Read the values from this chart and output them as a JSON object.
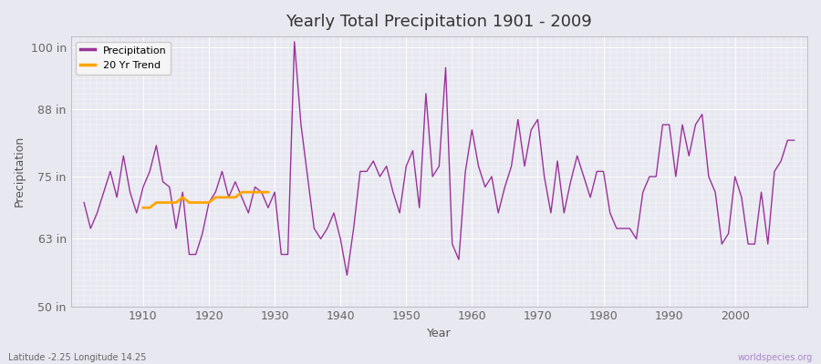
{
  "title": "Yearly Total Precipitation 1901 - 2009",
  "xlabel": "Year",
  "ylabel": "Precipitation",
  "bottom_left_label": "Latitude -2.25 Longitude 14.25",
  "bottom_right_label": "worldspecies.org",
  "ylim": [
    50,
    102
  ],
  "yticks": [
    50,
    63,
    75,
    88,
    100
  ],
  "ytick_labels": [
    "50 in",
    "63 in",
    "75 in",
    "88 in",
    "100 in"
  ],
  "xlim": [
    1899,
    2011
  ],
  "xticks": [
    1910,
    1920,
    1930,
    1940,
    1950,
    1960,
    1970,
    1980,
    1990,
    2000
  ],
  "precip_color": "#993399",
  "trend_color": "#FFA500",
  "bg_color": "#e8e8f0",
  "plot_bg_color": "#e8e8f0",
  "grid_color": "#ffffff",
  "legend_bg": "#f5f5f5",
  "years": [
    1901,
    1902,
    1903,
    1904,
    1905,
    1906,
    1907,
    1908,
    1909,
    1910,
    1911,
    1912,
    1913,
    1914,
    1915,
    1916,
    1917,
    1918,
    1919,
    1920,
    1921,
    1922,
    1923,
    1924,
    1925,
    1926,
    1927,
    1928,
    1929,
    1930,
    1931,
    1932,
    1933,
    1934,
    1935,
    1936,
    1937,
    1938,
    1939,
    1940,
    1941,
    1942,
    1943,
    1944,
    1945,
    1946,
    1947,
    1948,
    1949,
    1950,
    1951,
    1952,
    1953,
    1954,
    1955,
    1956,
    1957,
    1958,
    1959,
    1960,
    1961,
    1962,
    1963,
    1964,
    1965,
    1966,
    1967,
    1968,
    1969,
    1970,
    1971,
    1972,
    1973,
    1974,
    1975,
    1976,
    1977,
    1978,
    1979,
    1980,
    1981,
    1982,
    1983,
    1984,
    1985,
    1986,
    1987,
    1988,
    1989,
    1990,
    1991,
    1992,
    1993,
    1994,
    1995,
    1996,
    1997,
    1998,
    1999,
    2000,
    2001,
    2002,
    2003,
    2004,
    2005,
    2006,
    2007,
    2008,
    2009
  ],
  "precip": [
    70,
    65,
    68,
    72,
    76,
    71,
    79,
    72,
    68,
    73,
    76,
    81,
    74,
    73,
    65,
    72,
    60,
    60,
    64,
    70,
    72,
    76,
    71,
    74,
    71,
    68,
    73,
    72,
    69,
    72,
    60,
    60,
    101,
    85,
    75,
    65,
    63,
    65,
    68,
    63,
    56,
    65,
    76,
    76,
    78,
    75,
    77,
    72,
    68,
    77,
    80,
    69,
    91,
    75,
    77,
    96,
    62,
    59,
    76,
    84,
    77,
    73,
    75,
    68,
    73,
    77,
    86,
    77,
    84,
    86,
    75,
    68,
    78,
    68,
    74,
    79,
    75,
    71,
    76,
    76,
    68,
    65,
    65,
    65,
    63,
    72,
    75,
    75,
    85,
    85,
    75,
    85,
    79,
    85,
    87,
    75,
    72,
    62,
    64,
    75,
    71,
    62,
    62,
    72,
    62,
    76,
    78,
    82,
    82
  ],
  "trend_years": [
    1910,
    1911,
    1912,
    1913,
    1914,
    1915,
    1916,
    1917,
    1918,
    1919,
    1920,
    1921,
    1922,
    1923,
    1924,
    1925,
    1926,
    1927,
    1928,
    1929
  ],
  "trend": [
    69,
    69,
    70,
    70,
    70,
    70,
    71,
    70,
    70,
    70,
    70,
    71,
    71,
    71,
    71,
    72,
    72,
    72,
    72,
    72
  ]
}
